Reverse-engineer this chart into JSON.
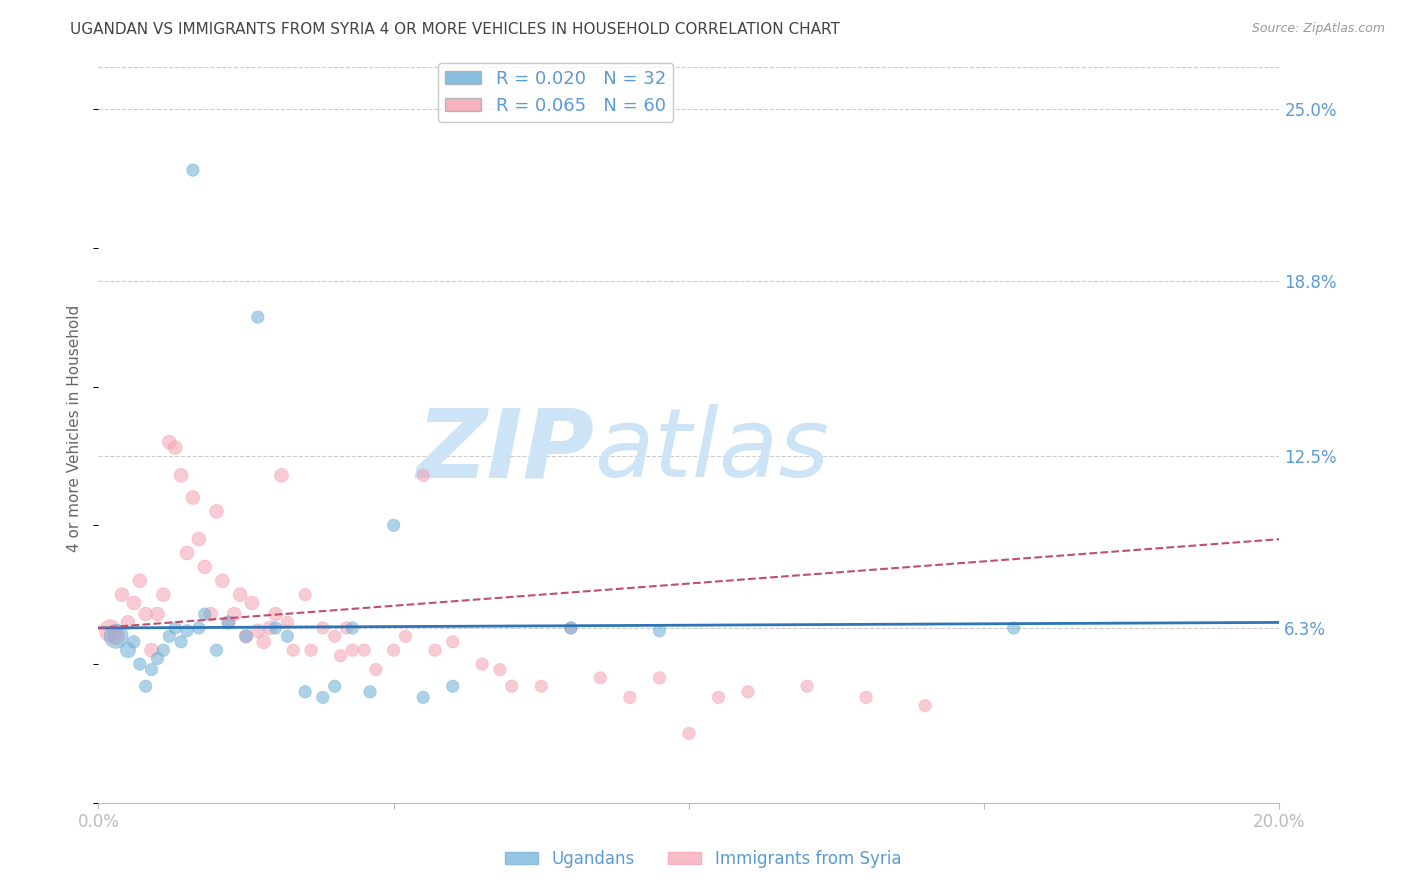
{
  "title": "UGANDAN VS IMMIGRANTS FROM SYRIA 4 OR MORE VEHICLES IN HOUSEHOLD CORRELATION CHART",
  "source": "Source: ZipAtlas.com",
  "ylabel": "4 or more Vehicles in Household",
  "xlim": [
    0.0,
    0.2
  ],
  "ylim": [
    0.0,
    0.27
  ],
  "ytick_right_vals": [
    0.063,
    0.125,
    0.188,
    0.25
  ],
  "ytick_right_labels": [
    "6.3%",
    "12.5%",
    "18.8%",
    "25.0%"
  ],
  "background_color": "#ffffff",
  "watermark_line1": "ZIP",
  "watermark_line2": "atlas",
  "watermark_color": "#cce4f5",
  "ugandan_color": "#6baed6",
  "syrian_color": "#f4a0b0",
  "ugandan_R": 0.02,
  "ugandan_N": 32,
  "syrian_R": 0.065,
  "syrian_N": 60,
  "legend_label_ugandan": "Ugandans",
  "legend_label_syrian": "Immigrants from Syria",
  "ugandan_x": [
    0.003,
    0.005,
    0.006,
    0.007,
    0.008,
    0.009,
    0.01,
    0.011,
    0.012,
    0.013,
    0.014,
    0.015,
    0.016,
    0.017,
    0.018,
    0.02,
    0.022,
    0.025,
    0.027,
    0.03,
    0.032,
    0.035,
    0.038,
    0.04,
    0.043,
    0.046,
    0.05,
    0.055,
    0.06,
    0.08,
    0.095,
    0.155
  ],
  "ugandan_y": [
    0.06,
    0.055,
    0.058,
    0.05,
    0.042,
    0.048,
    0.052,
    0.055,
    0.06,
    0.063,
    0.058,
    0.062,
    0.228,
    0.063,
    0.068,
    0.055,
    0.065,
    0.06,
    0.175,
    0.063,
    0.06,
    0.04,
    0.038,
    0.042,
    0.063,
    0.04,
    0.1,
    0.038,
    0.042,
    0.063,
    0.062,
    0.063
  ],
  "ugandan_sizes": [
    300,
    120,
    80,
    80,
    80,
    80,
    80,
    80,
    80,
    80,
    80,
    80,
    80,
    80,
    80,
    80,
    80,
    80,
    80,
    80,
    80,
    80,
    80,
    80,
    80,
    80,
    80,
    80,
    80,
    80,
    80,
    80
  ],
  "syrian_x": [
    0.002,
    0.003,
    0.004,
    0.005,
    0.006,
    0.007,
    0.008,
    0.009,
    0.01,
    0.011,
    0.012,
    0.013,
    0.014,
    0.015,
    0.016,
    0.017,
    0.018,
    0.019,
    0.02,
    0.021,
    0.022,
    0.023,
    0.024,
    0.025,
    0.026,
    0.027,
    0.028,
    0.029,
    0.03,
    0.031,
    0.032,
    0.033,
    0.035,
    0.036,
    0.038,
    0.04,
    0.041,
    0.042,
    0.043,
    0.045,
    0.047,
    0.05,
    0.052,
    0.055,
    0.057,
    0.06,
    0.065,
    0.068,
    0.07,
    0.075,
    0.08,
    0.085,
    0.09,
    0.095,
    0.1,
    0.105,
    0.11,
    0.12,
    0.13,
    0.14
  ],
  "syrian_y": [
    0.062,
    0.06,
    0.075,
    0.065,
    0.072,
    0.08,
    0.068,
    0.055,
    0.068,
    0.075,
    0.13,
    0.128,
    0.118,
    0.09,
    0.11,
    0.095,
    0.085,
    0.068,
    0.105,
    0.08,
    0.065,
    0.068,
    0.075,
    0.06,
    0.072,
    0.062,
    0.058,
    0.063,
    0.068,
    0.118,
    0.065,
    0.055,
    0.075,
    0.055,
    0.063,
    0.06,
    0.053,
    0.063,
    0.055,
    0.055,
    0.048,
    0.055,
    0.06,
    0.118,
    0.055,
    0.058,
    0.05,
    0.048,
    0.042,
    0.042,
    0.063,
    0.045,
    0.038,
    0.045,
    0.025,
    0.038,
    0.04,
    0.042,
    0.038,
    0.035
  ],
  "syrian_sizes": [
    250,
    150,
    100,
    100,
    100,
    100,
    100,
    100,
    100,
    100,
    100,
    100,
    100,
    100,
    100,
    100,
    100,
    100,
    100,
    100,
    100,
    100,
    100,
    100,
    100,
    100,
    100,
    100,
    100,
    100,
    80,
    80,
    80,
    80,
    80,
    80,
    80,
    80,
    80,
    80,
    80,
    80,
    80,
    80,
    80,
    80,
    80,
    80,
    80,
    80,
    80,
    80,
    80,
    80,
    80,
    80,
    80,
    80,
    80,
    80
  ],
  "grid_color": "#cccccc",
  "title_color": "#444444",
  "tick_label_color": "#5b9bd5",
  "line_ugandan_color": "#2e75b6",
  "line_syrian_color": "#c0506a",
  "line_ugandan_y_start": 0.063,
  "line_ugandan_y_end": 0.065,
  "line_syrian_y_start": 0.063,
  "line_syrian_y_end": 0.095
}
